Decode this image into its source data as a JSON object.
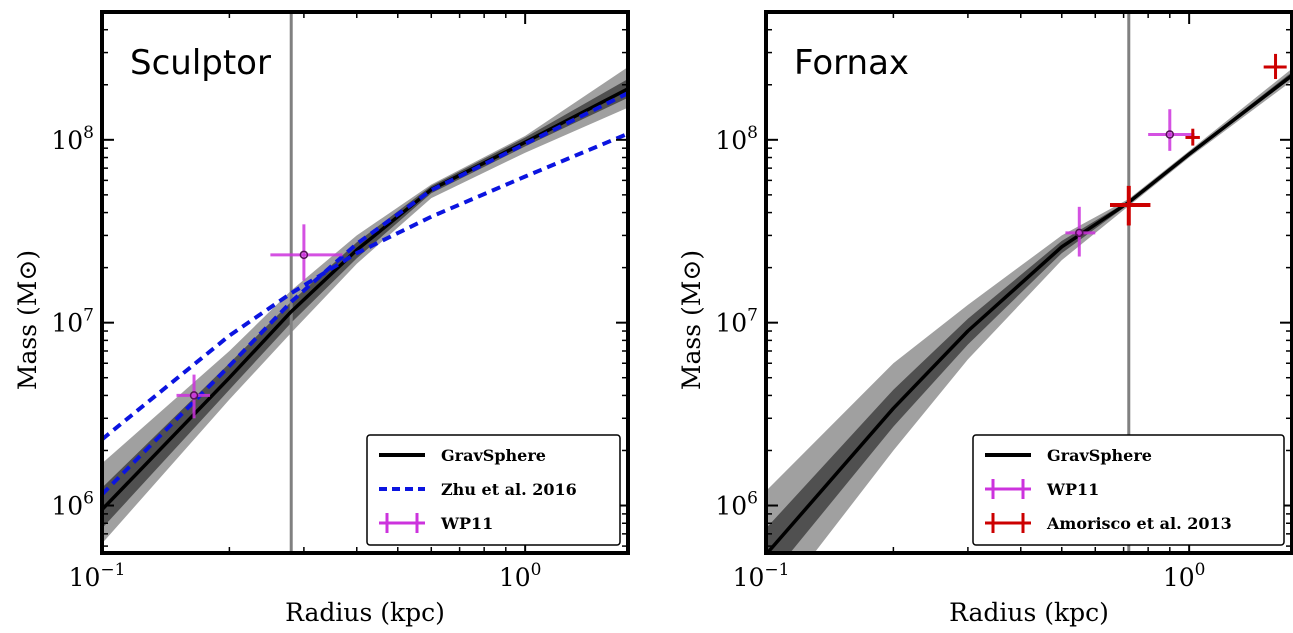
{
  "chart_data": [
    {
      "type": "line",
      "title": "Sculptor",
      "xlabel": "Radius (kpc)",
      "ylabel": "Mass (M⊙)",
      "xscale": "log",
      "yscale": "log",
      "xlim": [
        0.1,
        1.75
      ],
      "ylim": [
        550000,
        500000000
      ],
      "xticks": [
        {
          "value": 0.1,
          "base": "10",
          "exp": "−1"
        },
        {
          "value": 1,
          "base": "10",
          "exp": "0"
        }
      ],
      "yticks": [
        {
          "value": 1000000,
          "base": "10",
          "exp": "6"
        },
        {
          "value": 10000000,
          "base": "10",
          "exp": "7"
        },
        {
          "value": 100000000,
          "base": "10",
          "exp": "8"
        }
      ],
      "vline": 0.28,
      "bands": [
        {
          "level": "outer",
          "color": "#a0a0a0",
          "x": [
            0.1,
            0.2,
            0.28,
            0.4,
            0.6,
            1.0,
            1.75
          ],
          "lower": [
            620000,
            3800000,
            8800000,
            21000000,
            48000000,
            85000000,
            150000000
          ],
          "upper": [
            1700000,
            7000000,
            15000000,
            30000000,
            57000000,
            105000000,
            250000000
          ]
        },
        {
          "level": "inner",
          "color": "#505050",
          "x": [
            0.1,
            0.2,
            0.28,
            0.4,
            0.6,
            1.0,
            1.75
          ],
          "lower": [
            750000,
            4300000,
            10000000,
            22500000,
            51000000,
            92000000,
            170000000
          ],
          "upper": [
            1250000,
            6000000,
            13000000,
            27500000,
            56000000,
            103000000,
            215000000
          ]
        }
      ],
      "series": [
        {
          "name": "GravSphere",
          "style": "solid",
          "color": "#000000",
          "x": [
            0.1,
            0.2,
            0.28,
            0.4,
            0.6,
            1.0,
            1.75
          ],
          "y": [
            950000,
            5000000,
            11500000,
            25000000,
            53500000,
            97000000,
            190000000
          ]
        },
        {
          "name": "Zhu et al. 2016",
          "style": "dashed",
          "color": "#0b14e0",
          "x": [
            0.1,
            0.2,
            0.28,
            0.4,
            0.6,
            1.0,
            1.75
          ],
          "y": [
            2300000,
            8500000,
            14500000,
            24000000,
            38000000,
            63000000,
            108000000
          ]
        },
        {
          "name": "Zhu et al. 2016",
          "style": "dashed",
          "color": "#0b14e0",
          "x": [
            0.1,
            0.2,
            0.28,
            0.4,
            0.6,
            1.0,
            1.75
          ],
          "y": [
            1150000,
            5800000,
            13000000,
            27000000,
            53000000,
            95000000,
            180000000
          ]
        },
        {
          "name": "WP11",
          "style": "errorbar",
          "color": "#cc33dd",
          "points": [
            {
              "x": 0.165,
              "y": 4000000,
              "xerr": [
                0.015,
                0.015
              ],
              "yerr": [
                1000000,
                1200000
              ]
            },
            {
              "x": 0.3,
              "y": 23500000,
              "xerr": [
                0.05,
                0.07
              ],
              "yerr": [
                6500000,
                11000000
              ]
            }
          ]
        }
      ],
      "legend": {
        "position": "lower-right",
        "entries": [
          {
            "label": "GravSphere",
            "style": "solid",
            "color": "#000000"
          },
          {
            "label": "Zhu et al. 2016",
            "style": "dashed",
            "color": "#0b14e0"
          },
          {
            "label": "WP11",
            "style": "errorbar",
            "color": "#cc33dd"
          }
        ]
      }
    },
    {
      "type": "line",
      "title": "Fornax",
      "xlabel": "Radius (kpc)",
      "ylabel": "Mass (M⊙)",
      "xscale": "log",
      "yscale": "log",
      "xlim": [
        0.1,
        1.75
      ],
      "ylim": [
        550000,
        500000000
      ],
      "xticks": [
        {
          "value": 0.1,
          "base": "10",
          "exp": "−1"
        },
        {
          "value": 1,
          "base": "10",
          "exp": "0"
        }
      ],
      "yticks": [
        {
          "value": 1000000,
          "base": "10",
          "exp": "6"
        },
        {
          "value": 10000000,
          "base": "10",
          "exp": "7"
        },
        {
          "value": 100000000,
          "base": "10",
          "exp": "8"
        }
      ],
      "vline": 0.72,
      "bands": [
        {
          "level": "outer",
          "color": "#a0a0a0",
          "x": [
            0.1,
            0.2,
            0.3,
            0.5,
            0.72,
            1.0,
            1.75
          ],
          "lower": [
            250000,
            2000000,
            6300000,
            22000000,
            43500000,
            80000000,
            210000000
          ],
          "upper": [
            1200000,
            6000000,
            12500000,
            30000000,
            47500000,
            87000000,
            245000000
          ]
        },
        {
          "level": "inner",
          "color": "#505050",
          "x": [
            0.1,
            0.2,
            0.3,
            0.5,
            0.72,
            1.0,
            1.75
          ],
          "lower": [
            380000,
            2700000,
            7600000,
            24000000,
            44500000,
            82000000,
            218000000
          ],
          "upper": [
            750000,
            4300000,
            10500000,
            28000000,
            46500000,
            85000000,
            235000000
          ]
        }
      ],
      "series": [
        {
          "name": "GravSphere",
          "style": "solid",
          "color": "#000000",
          "x": [
            0.1,
            0.2,
            0.3,
            0.5,
            0.72,
            1.0,
            1.75
          ],
          "y": [
            540000,
            3400000,
            9000000,
            26000000,
            45500000,
            83500000,
            225000000
          ]
        },
        {
          "name": "WP11",
          "style": "errorbar",
          "color": "#cc33dd",
          "points": [
            {
              "x": 0.55,
              "y": 31000000,
              "xerr": [
                0.04,
                0.05
              ],
              "yerr": [
                8000000,
                12000000
              ]
            },
            {
              "x": 0.9,
              "y": 107000000,
              "xerr": [
                0.1,
                0.13
              ],
              "yerr": [
                20000000,
                40000000
              ]
            }
          ]
        },
        {
          "name": "Amorisco et al. 2013",
          "style": "errorbar",
          "color": "#cc0000",
          "points": [
            {
              "x": 0.72,
              "y": 44000000,
              "xerr": [
                0.07,
                0.09
              ],
              "yerr": [
                10000000,
                12000000
              ]
            },
            {
              "x": 1.02,
              "y": 103000000,
              "xerr": [
                0.04,
                0.04
              ],
              "yerr": [
                10000000,
                12000000
              ]
            },
            {
              "x": 1.6,
              "y": 250000000,
              "xerr": [
                0.1,
                0.1
              ],
              "yerr": [
                35000000,
                45000000
              ]
            }
          ]
        }
      ],
      "legend": {
        "position": "lower-right",
        "entries": [
          {
            "label": "GravSphere",
            "style": "solid",
            "color": "#000000"
          },
          {
            "label": "WP11",
            "style": "errorbar",
            "color": "#cc33dd"
          },
          {
            "label": "Amorisco et al. 2013",
            "style": "errorbar",
            "color": "#cc0000"
          }
        ]
      }
    }
  ]
}
